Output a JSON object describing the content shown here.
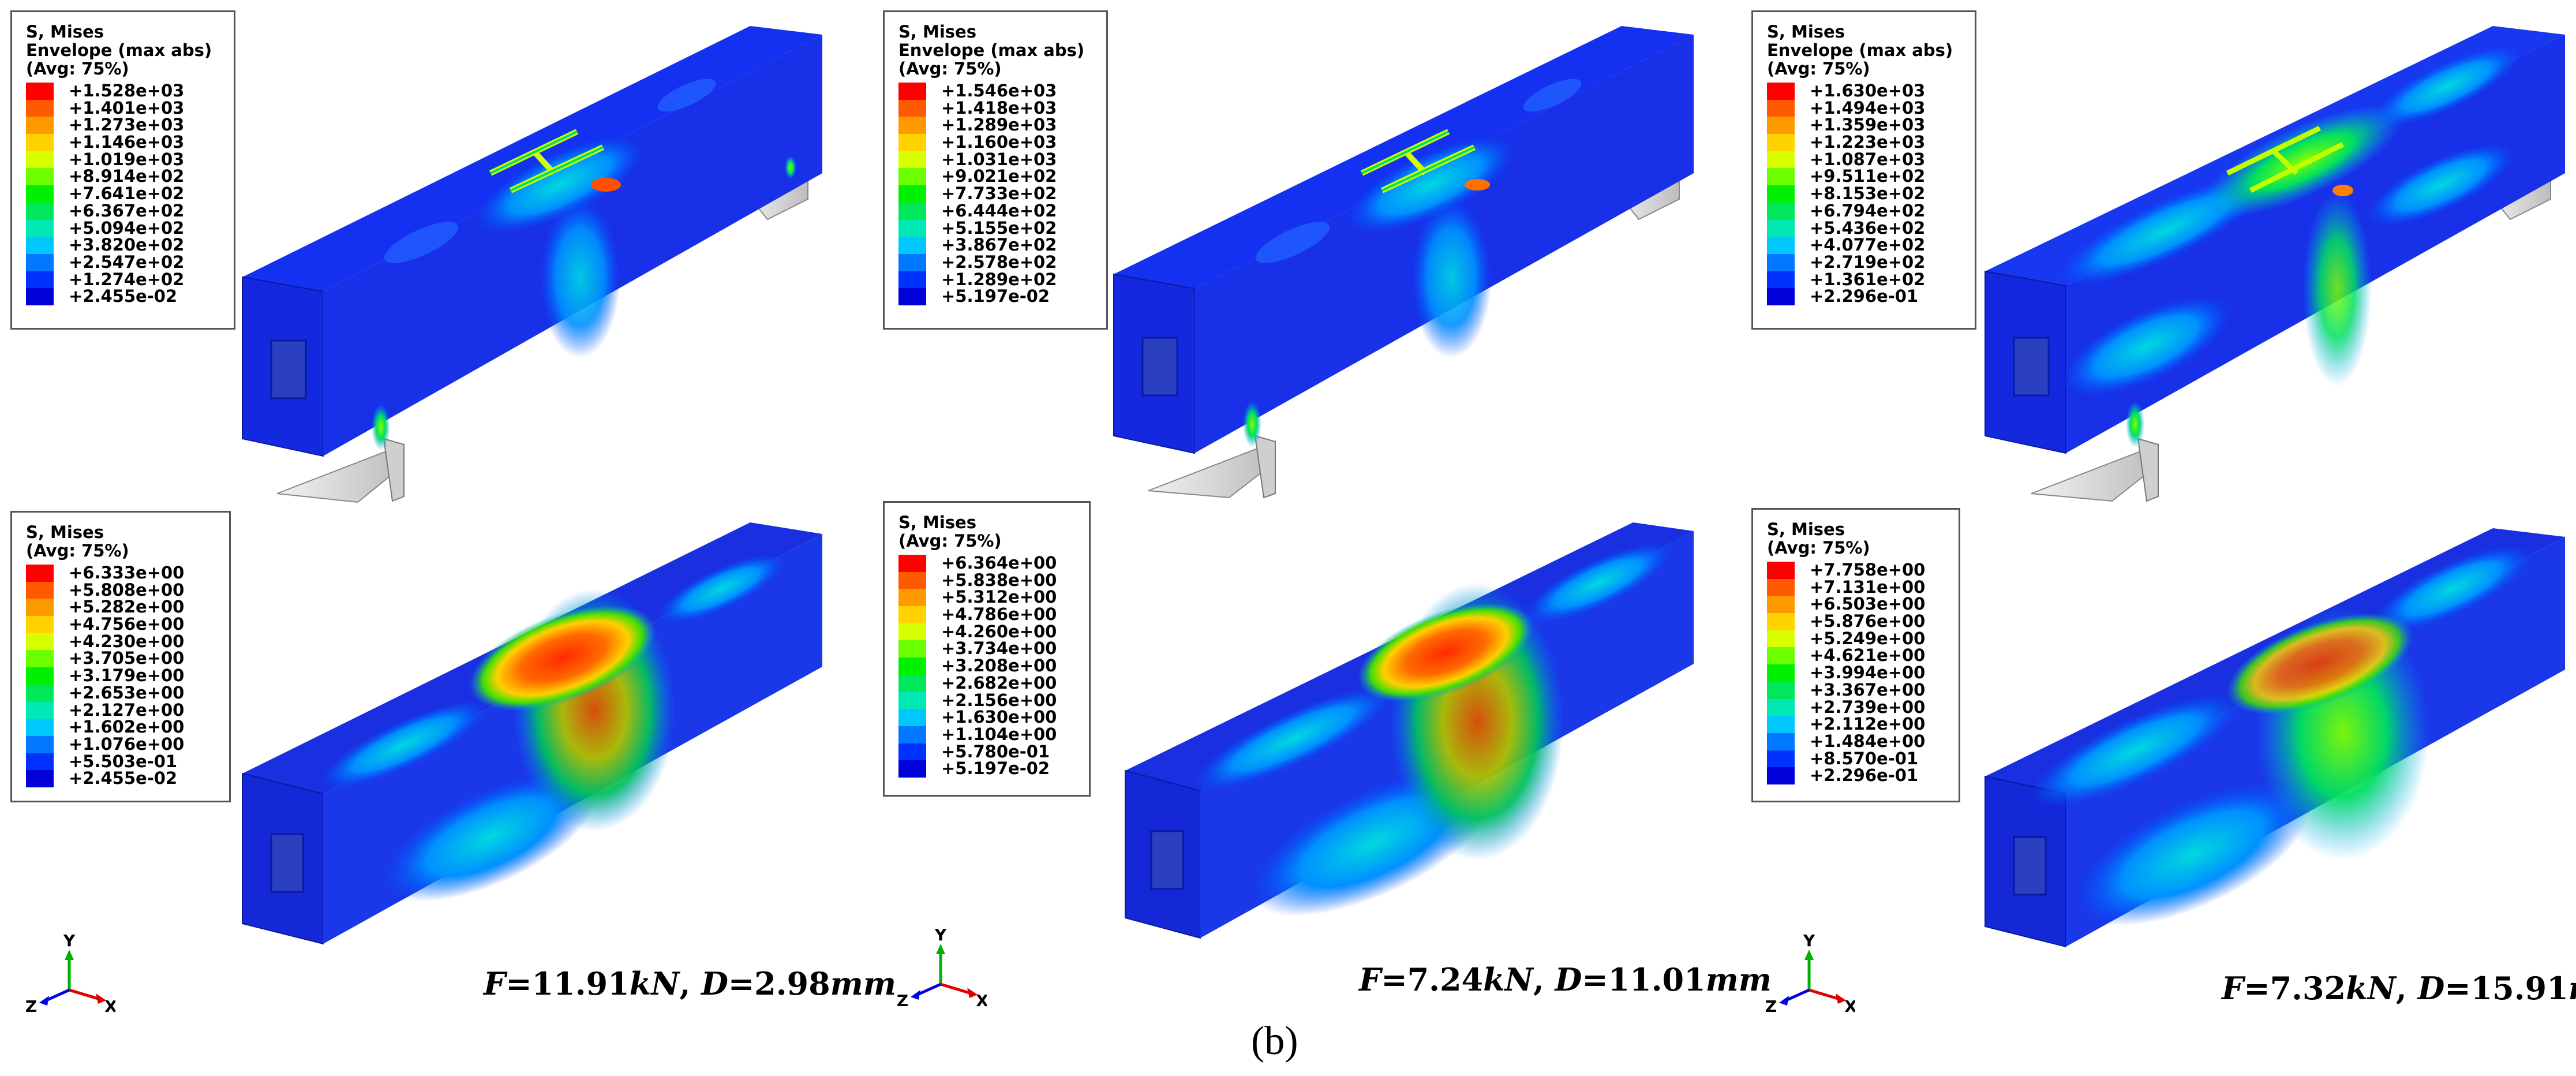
{
  "colors": {
    "contour": [
      "#ff0000",
      "#ff5a00",
      "#ff9900",
      "#ffd200",
      "#d8ff00",
      "#6cff00",
      "#00f000",
      "#00e85a",
      "#00e8b4",
      "#00c8ff",
      "#0078ff",
      "#0032ff",
      "#0000d8"
    ]
  },
  "panels": [
    {
      "id": "top-1",
      "header": [
        "S, Mises",
        "Envelope (max abs)",
        "(Avg: 75%)"
      ],
      "values": [
        "+1.528e+03",
        "+1.401e+03",
        "+1.273e+03",
        "+1.146e+03",
        "+1.019e+03",
        "+8.914e+02",
        "+7.641e+02",
        "+6.367e+02",
        "+5.094e+02",
        "+3.820e+02",
        "+2.547e+02",
        "+1.274e+02",
        "+2.455e-02"
      ]
    },
    {
      "id": "top-2",
      "header": [
        "S, Mises",
        "Envelope (max abs)",
        "(Avg: 75%)"
      ],
      "values": [
        "+1.546e+03",
        "+1.418e+03",
        "+1.289e+03",
        "+1.160e+03",
        "+1.031e+03",
        "+9.021e+02",
        "+7.733e+02",
        "+6.444e+02",
        "+5.155e+02",
        "+3.867e+02",
        "+2.578e+02",
        "+1.289e+02",
        "+5.197e-02"
      ]
    },
    {
      "id": "top-3",
      "header": [
        "S, Mises",
        "Envelope (max abs)",
        "(Avg: 75%)"
      ],
      "values": [
        "+1.630e+03",
        "+1.494e+03",
        "+1.359e+03",
        "+1.223e+03",
        "+1.087e+03",
        "+9.511e+02",
        "+8.153e+02",
        "+6.794e+02",
        "+5.436e+02",
        "+4.077e+02",
        "+2.719e+02",
        "+1.361e+02",
        "+2.296e-01"
      ]
    },
    {
      "id": "bottom-1",
      "header": [
        "S, Mises",
        "(Avg: 75%)"
      ],
      "values": [
        "+6.333e+00",
        "+5.808e+00",
        "+5.282e+00",
        "+4.756e+00",
        "+4.230e+00",
        "+3.705e+00",
        "+3.179e+00",
        "+2.653e+00",
        "+2.127e+00",
        "+1.602e+00",
        "+1.076e+00",
        "+5.503e-01",
        "+2.455e-02"
      ]
    },
    {
      "id": "bottom-2",
      "header": [
        "S, Mises",
        "(Avg: 75%)"
      ],
      "values": [
        "+6.364e+00",
        "+5.838e+00",
        "+5.312e+00",
        "+4.786e+00",
        "+4.260e+00",
        "+3.734e+00",
        "+3.208e+00",
        "+2.682e+00",
        "+2.156e+00",
        "+1.630e+00",
        "+1.104e+00",
        "+5.780e-01",
        "+5.197e-02"
      ]
    },
    {
      "id": "bottom-3",
      "header": [
        "S, Mises",
        "(Avg: 75%)"
      ],
      "values": [
        "+7.758e+00",
        "+7.131e+00",
        "+6.503e+00",
        "+5.876e+00",
        "+5.249e+00",
        "+4.621e+00",
        "+3.994e+00",
        "+3.367e+00",
        "+2.739e+00",
        "+2.112e+00",
        "+1.484e+00",
        "+8.570e-01",
        "+2.296e-01"
      ]
    }
  ],
  "results": [
    {
      "f_sym": "F",
      "f_val": "=11.91",
      "f_unit": "kN",
      "sep": ", ",
      "d_sym": "D",
      "d_val": "=2.98",
      "d_unit": "mm"
    },
    {
      "f_sym": "F",
      "f_val": "=7.24",
      "f_unit": "kN",
      "sep": ", ",
      "d_sym": "D",
      "d_val": "=11.01",
      "d_unit": "mm"
    },
    {
      "f_sym": "F",
      "f_val": "=7.32",
      "f_unit": "kN",
      "sep": ", ",
      "d_sym": "D",
      "d_val": "=15.91",
      "d_unit": "mm"
    }
  ],
  "triad": {
    "y": "Y",
    "z": "Z",
    "x": "X"
  },
  "caption": "(b)"
}
